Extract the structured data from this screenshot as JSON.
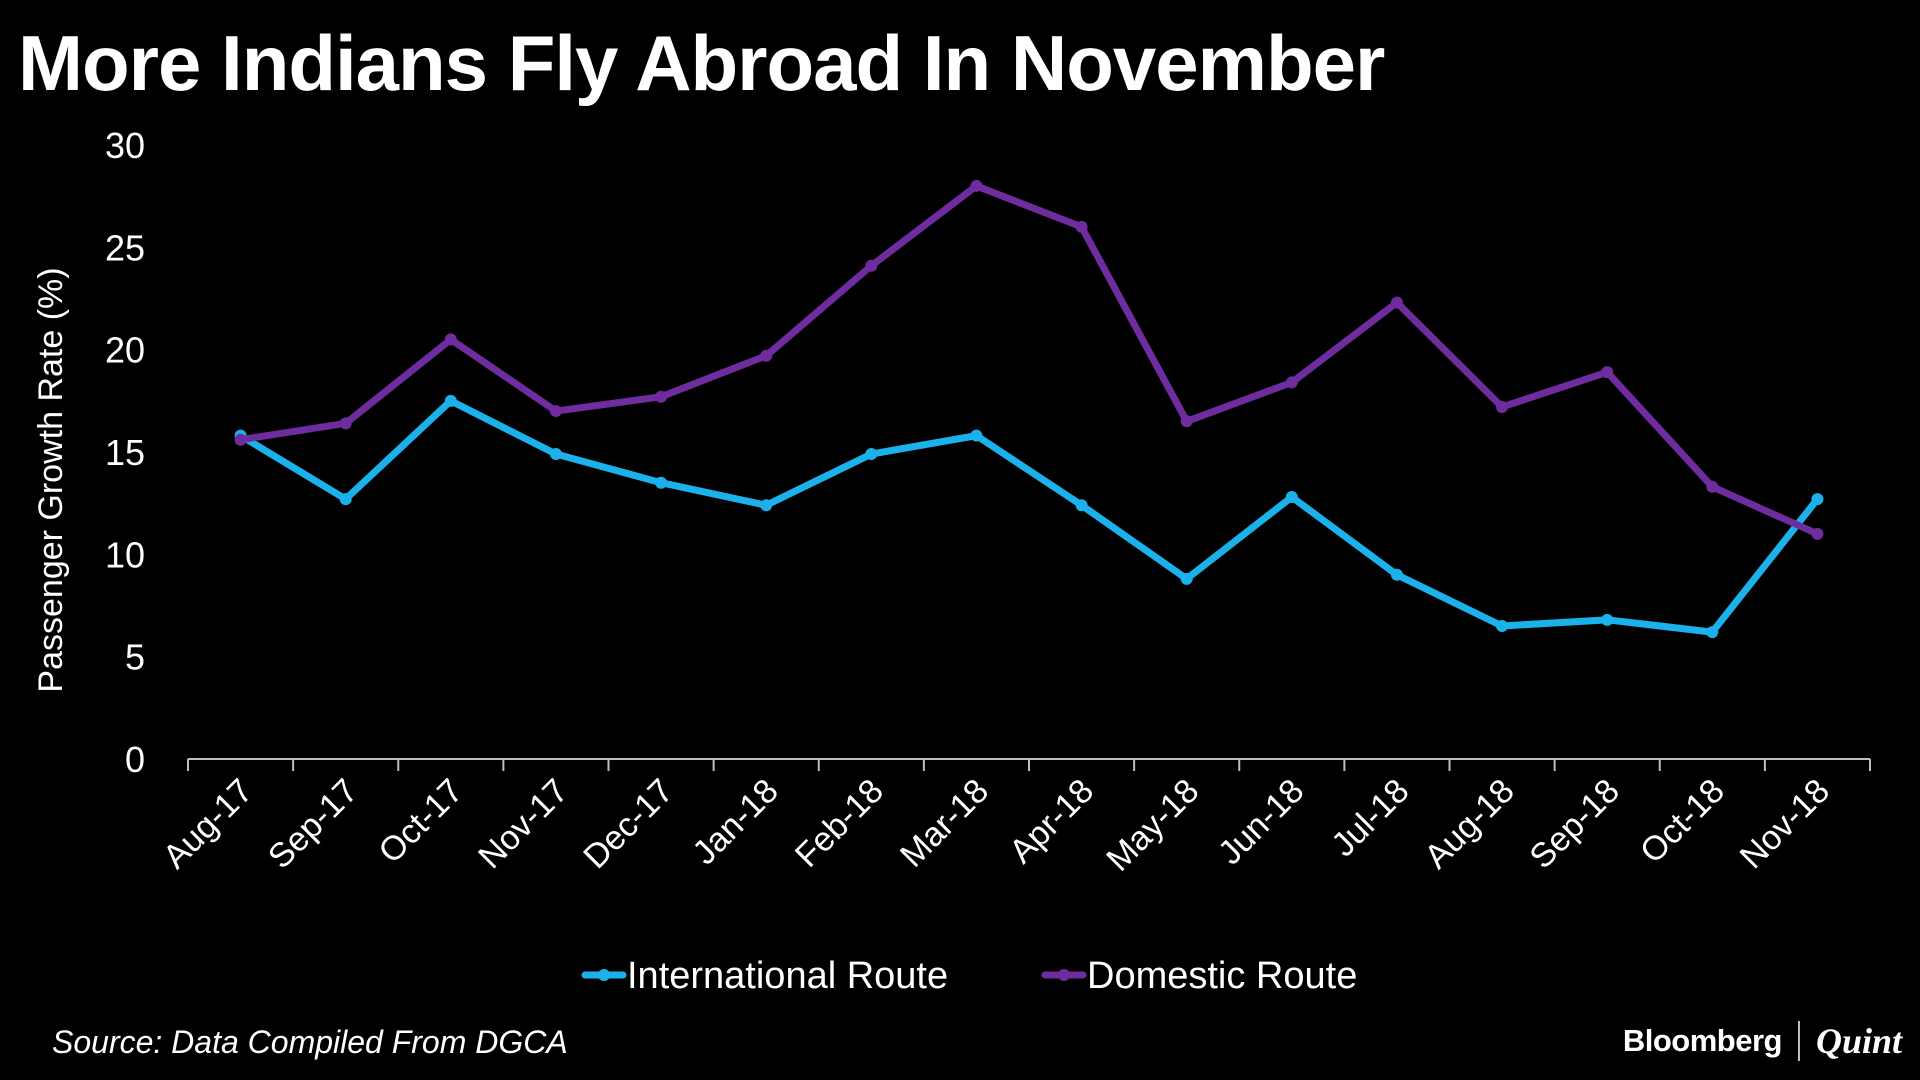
{
  "chart_data": {
    "type": "line",
    "title": "More Indians Fly Abroad In November",
    "ylabel": "Passenger Growth Rate (%)",
    "xlabel": "",
    "ylim": [
      0,
      30
    ],
    "yticks": [
      "0",
      "5",
      "10",
      "15",
      "20",
      "25",
      "30"
    ],
    "grid": false,
    "legend_position": "bottom",
    "categories": [
      "Aug-17",
      "Sep-17",
      "Oct-17",
      "Nov-17",
      "Dec-17",
      "Jan-18",
      "Feb-18",
      "Mar-18",
      "Apr-18",
      "May-18",
      "Jun-18",
      "Jul-18",
      "Aug-18",
      "Sep-18",
      "Oct-18",
      "Nov-18"
    ],
    "series": [
      {
        "name": "International Route",
        "color": "#1BB1EA",
        "values": [
          15.8,
          12.7,
          17.5,
          14.9,
          13.5,
          12.4,
          14.9,
          15.8,
          12.4,
          8.8,
          12.8,
          9.0,
          6.5,
          6.8,
          6.2,
          12.7
        ]
      },
      {
        "name": "Domestic Route",
        "color": "#6E2C9E",
        "values": [
          15.6,
          16.4,
          20.5,
          17.0,
          17.7,
          19.7,
          24.1,
          28.0,
          26.0,
          16.5,
          18.4,
          22.3,
          17.2,
          18.9,
          13.3,
          11.0
        ]
      }
    ]
  },
  "source": "Source: Data Compiled From DGCA",
  "brand": {
    "primary": "Bloomberg",
    "secondary": "Quint"
  },
  "colors": {
    "background": "#000000",
    "text": "#ffffff",
    "axis": "#bfbfbf"
  }
}
